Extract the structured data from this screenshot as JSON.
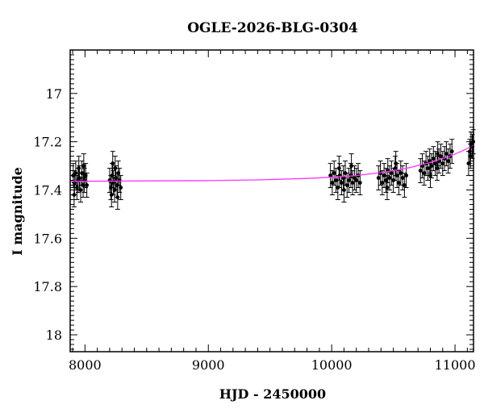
{
  "chart_data": {
    "type": "scatter",
    "title": "OGLE-2026-BLG-0304",
    "xlabel": "HJD - 2450000",
    "ylabel": "I magnitude",
    "xlim": [
      7880,
      11150
    ],
    "ylim": [
      18.07,
      16.82
    ],
    "y_inverted": true,
    "grid": false,
    "x_ticks": [
      8000,
      9000,
      10000,
      11000
    ],
    "y_ticks": [
      17,
      17.2,
      17.4,
      17.6,
      17.8,
      18
    ],
    "x_tick_labels": [
      "8000",
      "9000",
      "10000",
      "11000"
    ],
    "y_tick_labels": [
      "17",
      "17.2",
      "17.4",
      "17.6",
      "17.8",
      "18"
    ],
    "series": [
      {
        "kind": "points-with-errorbars",
        "color": "#000000",
        "points": [
          {
            "x": 7905,
            "y": 17.34,
            "err": 0.05
          },
          {
            "x": 7915,
            "y": 17.37,
            "err": 0.05
          },
          {
            "x": 7925,
            "y": 17.33,
            "err": 0.05
          },
          {
            "x": 7935,
            "y": 17.39,
            "err": 0.05
          },
          {
            "x": 7945,
            "y": 17.36,
            "err": 0.05
          },
          {
            "x": 7955,
            "y": 17.35,
            "err": 0.05
          },
          {
            "x": 7965,
            "y": 17.4,
            "err": 0.05
          },
          {
            "x": 7975,
            "y": 17.33,
            "err": 0.05
          },
          {
            "x": 7985,
            "y": 17.38,
            "err": 0.05
          },
          {
            "x": 7995,
            "y": 17.36,
            "err": 0.05
          },
          {
            "x": 8005,
            "y": 17.34,
            "err": 0.05
          },
          {
            "x": 8015,
            "y": 17.38,
            "err": 0.05
          },
          {
            "x": 7912,
            "y": 17.42,
            "err": 0.05
          },
          {
            "x": 7950,
            "y": 17.31,
            "err": 0.05
          },
          {
            "x": 7990,
            "y": 17.3,
            "err": 0.05
          },
          {
            "x": 8200,
            "y": 17.36,
            "err": 0.05
          },
          {
            "x": 8210,
            "y": 17.39,
            "err": 0.05
          },
          {
            "x": 8220,
            "y": 17.34,
            "err": 0.05
          },
          {
            "x": 8230,
            "y": 17.37,
            "err": 0.05
          },
          {
            "x": 8240,
            "y": 17.4,
            "err": 0.05
          },
          {
            "x": 8250,
            "y": 17.35,
            "err": 0.05
          },
          {
            "x": 8260,
            "y": 17.38,
            "err": 0.05
          },
          {
            "x": 8270,
            "y": 17.33,
            "err": 0.05
          },
          {
            "x": 8280,
            "y": 17.36,
            "err": 0.05
          },
          {
            "x": 8290,
            "y": 17.39,
            "err": 0.05
          },
          {
            "x": 8215,
            "y": 17.42,
            "err": 0.05
          },
          {
            "x": 8245,
            "y": 17.31,
            "err": 0.05
          },
          {
            "x": 8265,
            "y": 17.43,
            "err": 0.05
          },
          {
            "x": 8225,
            "y": 17.29,
            "err": 0.05
          },
          {
            "x": 9990,
            "y": 17.34,
            "err": 0.05
          },
          {
            "x": 10005,
            "y": 17.37,
            "err": 0.05
          },
          {
            "x": 10020,
            "y": 17.33,
            "err": 0.05
          },
          {
            "x": 10035,
            "y": 17.36,
            "err": 0.05
          },
          {
            "x": 10050,
            "y": 17.39,
            "err": 0.05
          },
          {
            "x": 10065,
            "y": 17.34,
            "err": 0.05
          },
          {
            "x": 10080,
            "y": 17.37,
            "err": 0.05
          },
          {
            "x": 10095,
            "y": 17.35,
            "err": 0.05
          },
          {
            "x": 10110,
            "y": 17.33,
            "err": 0.05
          },
          {
            "x": 10125,
            "y": 17.38,
            "err": 0.05
          },
          {
            "x": 10140,
            "y": 17.36,
            "err": 0.05
          },
          {
            "x": 10155,
            "y": 17.34,
            "err": 0.05
          },
          {
            "x": 10170,
            "y": 17.37,
            "err": 0.05
          },
          {
            "x": 10185,
            "y": 17.35,
            "err": 0.05
          },
          {
            "x": 10200,
            "y": 17.36,
            "err": 0.05
          },
          {
            "x": 10215,
            "y": 17.34,
            "err": 0.05
          },
          {
            "x": 10230,
            "y": 17.37,
            "err": 0.05
          },
          {
            "x": 10060,
            "y": 17.31,
            "err": 0.05
          },
          {
            "x": 10100,
            "y": 17.4,
            "err": 0.05
          },
          {
            "x": 10160,
            "y": 17.3,
            "err": 0.05
          },
          {
            "x": 10380,
            "y": 17.35,
            "err": 0.05
          },
          {
            "x": 10395,
            "y": 17.33,
            "err": 0.05
          },
          {
            "x": 10410,
            "y": 17.37,
            "err": 0.05
          },
          {
            "x": 10425,
            "y": 17.34,
            "err": 0.05
          },
          {
            "x": 10440,
            "y": 17.36,
            "err": 0.05
          },
          {
            "x": 10455,
            "y": 17.32,
            "err": 0.05
          },
          {
            "x": 10470,
            "y": 17.35,
            "err": 0.05
          },
          {
            "x": 10485,
            "y": 17.33,
            "err": 0.05
          },
          {
            "x": 10500,
            "y": 17.36,
            "err": 0.05
          },
          {
            "x": 10515,
            "y": 17.31,
            "err": 0.05
          },
          {
            "x": 10530,
            "y": 17.34,
            "err": 0.05
          },
          {
            "x": 10545,
            "y": 17.37,
            "err": 0.05
          },
          {
            "x": 10560,
            "y": 17.33,
            "err": 0.05
          },
          {
            "x": 10575,
            "y": 17.35,
            "err": 0.05
          },
          {
            "x": 10590,
            "y": 17.38,
            "err": 0.05
          },
          {
            "x": 10605,
            "y": 17.34,
            "err": 0.05
          },
          {
            "x": 10450,
            "y": 17.39,
            "err": 0.05
          },
          {
            "x": 10520,
            "y": 17.29,
            "err": 0.05
          },
          {
            "x": 10720,
            "y": 17.32,
            "err": 0.05
          },
          {
            "x": 10735,
            "y": 17.3,
            "err": 0.05
          },
          {
            "x": 10750,
            "y": 17.33,
            "err": 0.05
          },
          {
            "x": 10765,
            "y": 17.29,
            "err": 0.05
          },
          {
            "x": 10780,
            "y": 17.31,
            "err": 0.05
          },
          {
            "x": 10795,
            "y": 17.28,
            "err": 0.05
          },
          {
            "x": 10810,
            "y": 17.3,
            "err": 0.05
          },
          {
            "x": 10825,
            "y": 17.27,
            "err": 0.05
          },
          {
            "x": 10840,
            "y": 17.29,
            "err": 0.05
          },
          {
            "x": 10855,
            "y": 17.31,
            "err": 0.05
          },
          {
            "x": 10870,
            "y": 17.28,
            "err": 0.05
          },
          {
            "x": 10885,
            "y": 17.26,
            "err": 0.05
          },
          {
            "x": 10900,
            "y": 17.29,
            "err": 0.05
          },
          {
            "x": 10915,
            "y": 17.27,
            "err": 0.05
          },
          {
            "x": 10930,
            "y": 17.25,
            "err": 0.05
          },
          {
            "x": 10945,
            "y": 17.28,
            "err": 0.05
          },
          {
            "x": 10960,
            "y": 17.26,
            "err": 0.05
          },
          {
            "x": 10975,
            "y": 17.24,
            "err": 0.05
          },
          {
            "x": 10800,
            "y": 17.34,
            "err": 0.05
          },
          {
            "x": 10860,
            "y": 17.25,
            "err": 0.05
          },
          {
            "x": 11110,
            "y": 17.29,
            "err": 0.05
          },
          {
            "x": 11120,
            "y": 17.24,
            "err": 0.05
          },
          {
            "x": 11130,
            "y": 17.21,
            "err": 0.05
          },
          {
            "x": 11140,
            "y": 17.22,
            "err": 0.05
          },
          {
            "x": 11148,
            "y": 17.2,
            "err": 0.05
          },
          {
            "x": 11125,
            "y": 17.26,
            "err": 0.05
          }
        ]
      },
      {
        "kind": "model-curve",
        "color": "#ff33ff",
        "x": [
          7880,
          8200,
          8600,
          9000,
          9400,
          9800,
          10000,
          10200,
          10400,
          10600,
          10800,
          10950,
          11050,
          11150
        ],
        "y": [
          17.364,
          17.363,
          17.362,
          17.361,
          17.358,
          17.352,
          17.347,
          17.34,
          17.328,
          17.311,
          17.286,
          17.262,
          17.24,
          17.215
        ]
      }
    ]
  }
}
